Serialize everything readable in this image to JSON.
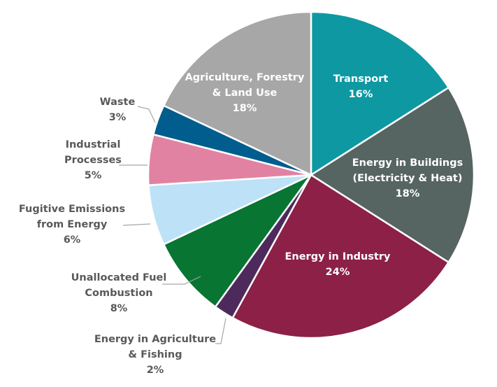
{
  "chart_data": {
    "type": "pie",
    "title": "",
    "legend": "none",
    "slices": [
      {
        "label_lines": [
          "Transport",
          "16%"
        ],
        "value": 16,
        "color": "#0E98A2",
        "inside": true
      },
      {
        "label_lines": [
          "Energy in Buildings",
          "(Electricity & Heat)",
          "18%"
        ],
        "value": 18,
        "color": "#566462",
        "inside": true
      },
      {
        "label_lines": [
          "Energy in Industry",
          "24%"
        ],
        "value": 24,
        "color": "#8C2046",
        "inside": true
      },
      {
        "label_lines": [
          "Energy in Agriculture",
          "& Fishing",
          "2%"
        ],
        "value": 2,
        "color": "#4E2A5C",
        "inside": false
      },
      {
        "label_lines": [
          "Unallocated Fuel",
          "Combustion",
          "8%"
        ],
        "value": 8,
        "color": "#087533",
        "inside": false
      },
      {
        "label_lines": [
          "Fugitive Emissions",
          "from Energy",
          "6%"
        ],
        "value": 6,
        "color": "#BDE2F7",
        "inside": false
      },
      {
        "label_lines": [
          "Industrial",
          "Processes",
          "5%"
        ],
        "value": 5,
        "color": "#E282A3",
        "inside": false
      },
      {
        "label_lines": [
          "Waste",
          "3%"
        ],
        "value": 3,
        "color": "#005D8D",
        "inside": false
      },
      {
        "label_lines": [
          "Agriculture, Forestry",
          "& Land Use",
          "18%"
        ],
        "value": 18,
        "color": "#A7A7A7",
        "inside": true
      }
    ]
  }
}
